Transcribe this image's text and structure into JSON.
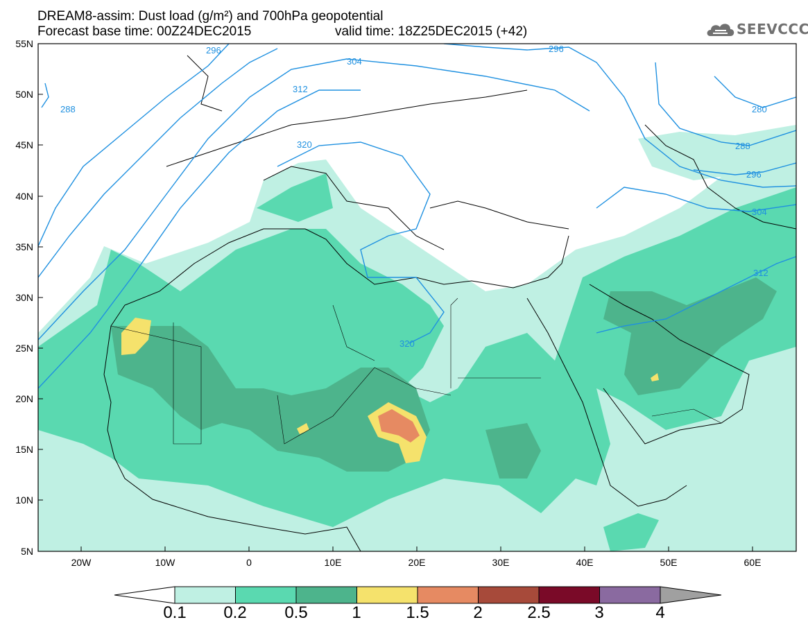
{
  "header": {
    "title_line1": "DREAM8-assim: Dust load (g/m²) and 700hPa geopotential",
    "title_line2a": "Forecast base time: 00Z24DEC2015",
    "title_line2b": "valid time: 18Z25DEC2015 (+42)"
  },
  "logo": {
    "text": "SEEVCCC",
    "icon": "cloud-icon"
  },
  "axes": {
    "lat_labels": [
      "55N",
      "50N",
      "45N",
      "40N",
      "35N",
      "30N",
      "25N",
      "20N",
      "15N",
      "10N",
      "5N"
    ],
    "lon_labels": [
      "20W",
      "10W",
      "0",
      "10E",
      "20E",
      "30E",
      "40E",
      "50E",
      "60E"
    ]
  },
  "contours": {
    "labels": [
      "296",
      "304",
      "312",
      "320",
      "288",
      "320",
      "296",
      "280",
      "288",
      "296",
      "304",
      "312"
    ]
  },
  "colorbar": {
    "labels": [
      "0.1",
      "0.2",
      "0.5",
      "1",
      "1.5",
      "2",
      "2.5",
      "3",
      "4"
    ],
    "colors": [
      "#ffffff",
      "#bff0e3",
      "#5ad9b0",
      "#4db48c",
      "#f5e26c",
      "#e68a62",
      "#a74a3a",
      "#7a0a28",
      "#8a6aa0",
      "#a0a0a0"
    ]
  }
}
